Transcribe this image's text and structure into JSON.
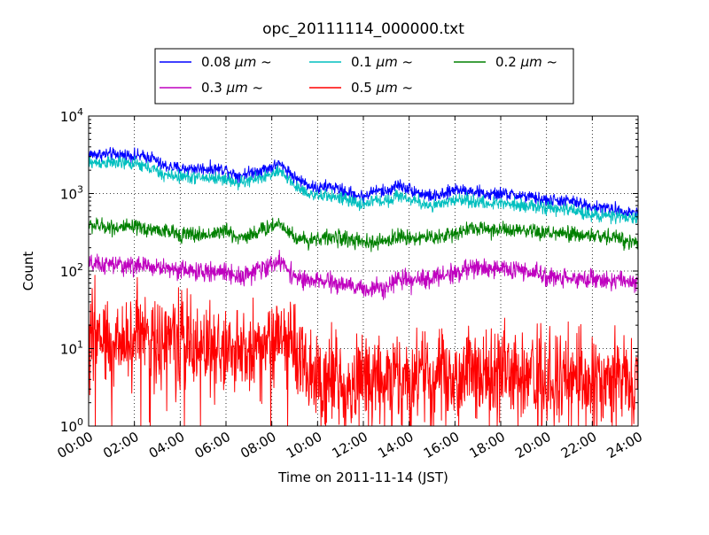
{
  "chart_data": {
    "type": "line",
    "title": "opc_20111114_000000.txt",
    "xlabel": "Time on 2011-11-14 (JST)",
    "ylabel": "Count",
    "x_unit": "hours",
    "xlim": [
      0,
      24
    ],
    "ylim": [
      1,
      10000
    ],
    "yscale": "log",
    "grid": true,
    "legend_position": "top",
    "x_tick_labels": [
      "00:00",
      "02:00",
      "04:00",
      "06:00",
      "08:00",
      "10:00",
      "12:00",
      "14:00",
      "16:00",
      "18:00",
      "20:00",
      "22:00",
      "24:00"
    ],
    "y_tick_labels": [
      {
        "base": "10",
        "exp": "0"
      },
      {
        "base": "10",
        "exp": "1"
      },
      {
        "base": "10",
        "exp": "2"
      },
      {
        "base": "10",
        "exp": "3"
      },
      {
        "base": "10",
        "exp": "4"
      }
    ],
    "series": [
      {
        "name": "0.08 μm ~",
        "name_num": "0.08",
        "name_unit": "μm",
        "name_tail": "~",
        "color": "#0000ff",
        "noise": 0.04,
        "x": [
          0,
          1,
          2,
          2.8,
          3.2,
          4,
          5,
          6,
          6.5,
          7,
          7.5,
          8,
          8.3,
          8.7,
          9,
          9.5,
          10,
          10.5,
          11,
          11.5,
          12,
          12.5,
          13,
          13.5,
          14,
          14.5,
          15,
          15.5,
          16,
          16.5,
          17,
          17.5,
          18,
          19,
          20,
          21,
          22,
          23,
          24
        ],
        "y": [
          3200,
          3200,
          3100,
          2900,
          2300,
          2100,
          2100,
          2050,
          1700,
          1850,
          2000,
          2200,
          2400,
          2000,
          1600,
          1350,
          1150,
          1250,
          1120,
          1000,
          900,
          1100,
          1050,
          1300,
          1150,
          1000,
          920,
          950,
          1150,
          1100,
          1050,
          950,
          1000,
          920,
          820,
          800,
          680,
          620,
          560
        ]
      },
      {
        "name": "0.1 μm ~",
        "name_num": "0.1",
        "name_unit": "μm",
        "name_tail": "~",
        "color": "#00bfbf",
        "noise": 0.04,
        "x": [
          0,
          1,
          2,
          2.8,
          3.2,
          4,
          5,
          6,
          6.5,
          7,
          7.5,
          8,
          8.3,
          8.7,
          9,
          9.5,
          10,
          10.5,
          11,
          11.5,
          12,
          12.5,
          13,
          13.5,
          14,
          14.5,
          15,
          15.5,
          16,
          16.5,
          17,
          17.5,
          18,
          19,
          20,
          21,
          22,
          23,
          24
        ],
        "y": [
          2500,
          2500,
          2400,
          2100,
          1750,
          1650,
          1600,
          1550,
          1350,
          1450,
          1600,
          1750,
          1900,
          1600,
          1250,
          1050,
          900,
          950,
          870,
          780,
          720,
          820,
          800,
          950,
          850,
          750,
          700,
          720,
          850,
          820,
          780,
          720,
          770,
          710,
          640,
          620,
          540,
          500,
          470
        ]
      },
      {
        "name": "0.2 μm ~",
        "name_num": "0.2",
        "name_unit": "μm",
        "name_tail": "~",
        "color": "#008000",
        "noise": 0.05,
        "x": [
          0,
          1,
          2,
          3,
          4,
          5,
          6,
          6.5,
          7,
          7.5,
          8,
          8.3,
          8.7,
          9,
          9.5,
          10,
          11,
          12,
          12.5,
          13,
          13.5,
          14,
          15,
          16,
          16.5,
          17,
          18,
          19,
          20,
          21,
          22,
          23,
          24
        ],
        "y": [
          390,
          370,
          360,
          340,
          300,
          290,
          330,
          270,
          290,
          330,
          380,
          420,
          340,
          270,
          250,
          265,
          270,
          230,
          230,
          245,
          280,
          270,
          270,
          300,
          360,
          350,
          340,
          320,
          310,
          295,
          285,
          270,
          230
        ]
      },
      {
        "name": "0.3 μm ~",
        "name_num": "0.3",
        "name_unit": "μm",
        "name_tail": "~",
        "color": "#bf00bf",
        "noise": 0.06,
        "x": [
          0,
          1,
          2,
          3,
          4,
          5,
          6,
          6.5,
          7,
          7.5,
          8,
          8.3,
          8.7,
          9,
          9.5,
          10,
          11,
          12,
          12.5,
          13,
          13.5,
          14,
          15,
          16,
          16.5,
          17,
          18,
          19,
          20,
          21,
          22,
          23,
          24
        ],
        "y": [
          120,
          120,
          118,
          112,
          105,
          95,
          100,
          85,
          92,
          105,
          120,
          135,
          110,
          85,
          72,
          75,
          68,
          58,
          60,
          65,
          78,
          72,
          82,
          95,
          105,
          110,
          108,
          100,
          85,
          82,
          78,
          75,
          72
        ]
      },
      {
        "name": "0.5 μm ~",
        "name_num": "0.5",
        "name_unit": "μm",
        "name_tail": "~",
        "color": "#ff0000",
        "noise": 0.3,
        "x": [
          0,
          1,
          2,
          3,
          4,
          5,
          6,
          7,
          7.5,
          8,
          8.5,
          9,
          9.5,
          10,
          11,
          12,
          13,
          14,
          15,
          16,
          17,
          18,
          19,
          20,
          21,
          22,
          23,
          24
        ],
        "y": [
          12,
          13,
          13,
          13,
          13,
          11,
          9,
          9,
          11,
          14,
          13,
          10,
          6,
          4,
          4,
          3.5,
          4,
          4,
          4.5,
          5,
          5,
          5,
          4.5,
          4,
          4,
          4,
          4,
          4
        ]
      }
    ]
  }
}
